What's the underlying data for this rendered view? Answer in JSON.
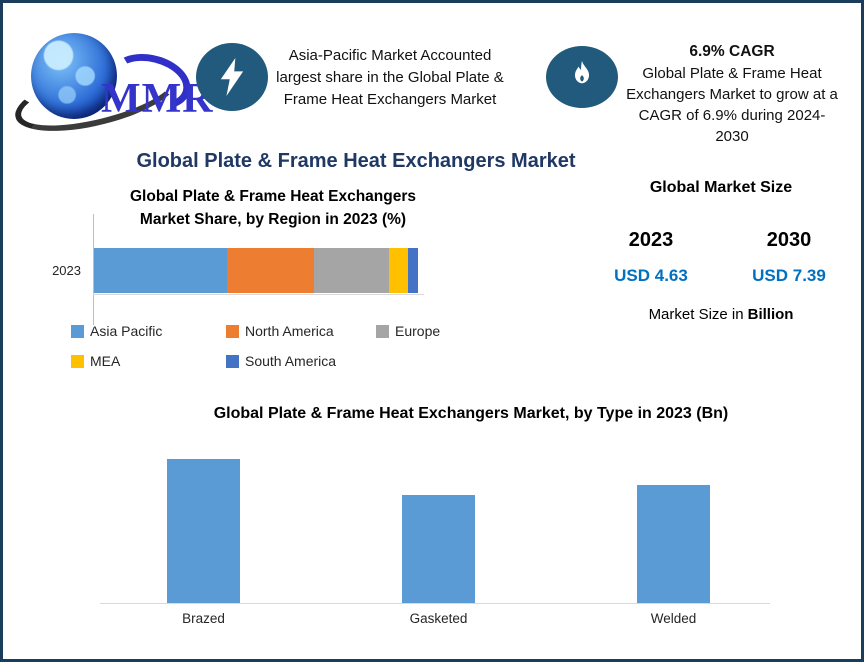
{
  "logo": {
    "brand": "MMR",
    "icon": "globe-icon"
  },
  "highlights": {
    "left": {
      "icon": "lightning-icon",
      "text": "Asia-Pacific Market Accounted largest share in the Global Plate & Frame Heat Exchangers Market"
    },
    "right": {
      "icon": "flame-icon",
      "headline": "6.9% CAGR",
      "text": "Global Plate & Frame Heat Exchangers Market to grow at a CAGR of 6.9% during 2024-2030"
    }
  },
  "page_title": "Global Plate & Frame Heat Exchangers Market",
  "market_size": {
    "title": "Global Market Size",
    "columns": [
      {
        "year": "2023",
        "value": "USD 4.63"
      },
      {
        "year": "2030",
        "value": "USD 7.39"
      }
    ],
    "note_prefix": "Market Size in",
    "note_bold": "Billion"
  },
  "chart_data": [
    {
      "type": "bar",
      "subtype": "horizontal-stacked",
      "title": "Global Plate & Frame Heat Exchangers Market Share, by Region in 2023 (%)",
      "categories": [
        "2023"
      ],
      "series": [
        {
          "name": "Asia Pacific",
          "values": [
            41
          ],
          "color": "#5B9BD5"
        },
        {
          "name": "North America",
          "values": [
            27
          ],
          "color": "#ED7D31"
        },
        {
          "name": "Europe",
          "values": [
            23
          ],
          "color": "#A5A5A5"
        },
        {
          "name": "MEA",
          "values": [
            6
          ],
          "color": "#FFC000"
        },
        {
          "name": "South America",
          "values": [
            3
          ],
          "color": "#4472C4"
        }
      ],
      "xlim": [
        0,
        100
      ],
      "unit": "%",
      "legend_position": "bottom",
      "gridlines": false,
      "values_estimated_from_pixels": true
    },
    {
      "type": "bar",
      "title": "Global Plate & Frame Heat Exchangers Market, by Type in 2023 (Bn)",
      "categories": [
        "Brazed",
        "Gasketed",
        "Welded"
      ],
      "values": [
        1.8,
        1.35,
        1.47
      ],
      "ylim": [
        0,
        2
      ],
      "unit": "Bn",
      "color": "#5B9BD5",
      "gridlines": false,
      "values_estimated_from_pixels": true
    }
  ],
  "colors": {
    "frame_border": "#1A3D5C",
    "badge_blue": "#215A7C",
    "title_navy": "#1F3864",
    "value_blue": "#0070C0",
    "bar_blue": "#5B9BD5"
  }
}
